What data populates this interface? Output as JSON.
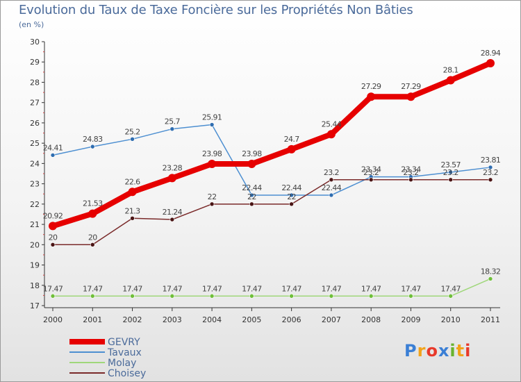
{
  "chart_data": {
    "type": "line",
    "title": "Evolution du Taux de Taxe Foncière sur les Propriétés Non Bâties",
    "subtitle": "(en %)",
    "xlabel": "",
    "ylabel": "",
    "ylim": [
      17,
      30
    ],
    "yticks": [
      "17",
      "18",
      "19",
      "20",
      "21",
      "22",
      "23",
      "24",
      "25",
      "26",
      "27",
      "28",
      "29",
      "30"
    ],
    "categories": [
      "2000",
      "2001",
      "2002",
      "2003",
      "2004",
      "2005",
      "2006",
      "2007",
      "2008",
      "2009",
      "2010",
      "2011"
    ],
    "series": [
      {
        "name": "Tavaux",
        "color": "#4d8fd1",
        "point_color": "#2f6db0",
        "stroke": 1.5,
        "radius": 3,
        "values": [
          24.41,
          24.83,
          25.2,
          25.7,
          25.91,
          22.44,
          22.44,
          22.44,
          23.34,
          23.34,
          23.57,
          23.81
        ],
        "labels": [
          "24.41",
          "24.83",
          "25.2",
          "25.7",
          "25.91",
          "22.44",
          "22.44",
          "22.44",
          "23.34",
          "23.34",
          "23.57",
          "23.81"
        ]
      },
      {
        "name": "Choisey",
        "color": "#7a2a2a",
        "point_color": "#4a1515",
        "stroke": 1.5,
        "radius": 3,
        "values": [
          20,
          20,
          21.3,
          21.24,
          22,
          22,
          22,
          23.2,
          23.2,
          23.2,
          23.2,
          23.2
        ],
        "labels": [
          "20",
          "20",
          "21.3",
          "21.24",
          "22",
          "22",
          "22",
          "23.2",
          "23.2",
          "23.2",
          "23.2",
          "23.2"
        ]
      },
      {
        "name": "Molay",
        "color": "#9fd77a",
        "point_color": "#6fbe3a",
        "stroke": 1.5,
        "radius": 3,
        "values": [
          17.47,
          17.47,
          17.47,
          17.47,
          17.47,
          17.47,
          17.47,
          17.47,
          17.47,
          17.47,
          17.47,
          18.32
        ],
        "labels": [
          "17.47",
          "17.47",
          "17.47",
          "17.47",
          "17.47",
          "17.47",
          "17.47",
          "17.47",
          "17.47",
          "17.47",
          "17.47",
          "18.32"
        ]
      },
      {
        "name": "GEVRY",
        "color": "#e60000",
        "point_color": "#e60000",
        "stroke": 8,
        "radius": 6,
        "values": [
          20.92,
          21.53,
          22.6,
          23.28,
          23.98,
          23.98,
          24.7,
          25.44,
          27.29,
          27.29,
          28.1,
          28.94
        ],
        "labels": [
          "20.92",
          "21.53",
          "22.6",
          "23.28",
          "23.98",
          "23.98",
          "24.7",
          "25.44",
          "27.29",
          "27.29",
          "28.1",
          "28.94"
        ]
      }
    ],
    "legend": {
      "position": "bottom-left",
      "items": [
        {
          "name": "GEVRY",
          "color": "#e60000"
        },
        {
          "name": "Tavaux",
          "color": "#4d8fd1"
        },
        {
          "name": "Molay",
          "color": "#9fd77a"
        },
        {
          "name": "Choisey",
          "color": "#7a2a2a"
        }
      ]
    }
  },
  "logo": {
    "text": "Proxiti",
    "letters": [
      "P",
      "r",
      "o",
      "x",
      "i",
      "t",
      "i"
    ],
    "colors": [
      "#3a7fd5",
      "#f2a31a",
      "#e8392a",
      "#3a7fd5",
      "#69b32f",
      "#f2a31a",
      "#e8392a"
    ]
  }
}
